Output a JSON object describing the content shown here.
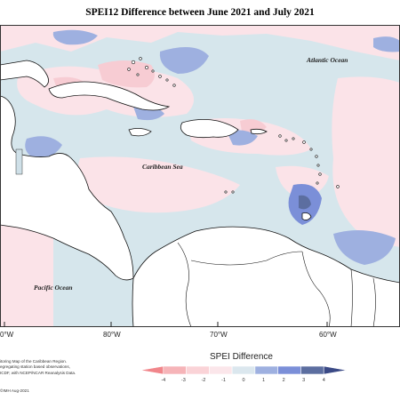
{
  "title": "SPEI12 Difference between June 2021 and July 2021",
  "labels": {
    "atlantic": "Atlantic Ocean",
    "caribbean": "Caribbean Sea",
    "pacific": "Pacific Ocean"
  },
  "longitudes": [
    "0°W",
    "80°W",
    "70°W",
    "60°W"
  ],
  "legend": {
    "title": "SPEI Difference",
    "ticks": [
      "-4",
      "-3",
      "-2",
      "-1",
      "0",
      "1",
      "2",
      "3",
      "4"
    ],
    "colors": [
      "#f1868b",
      "#f6b4b8",
      "#fad3d7",
      "#fbe6ea",
      "#dbe7ee",
      "#9eb0e0",
      "#7b8fd8",
      "#5c6ea0",
      "#3b4a86"
    ]
  },
  "credits": {
    "line1": "itoring Map of the Caribbean Region.",
    "line2": "egregating station based observations,",
    "line3": "ICDF, with NCEP/NCAR Reanalysis Data.",
    "copyright": "©IMH Aug-2021"
  },
  "colors": {
    "ocean_base": "#d6e6ec",
    "land": "#ffffff",
    "coast": "#111111"
  }
}
